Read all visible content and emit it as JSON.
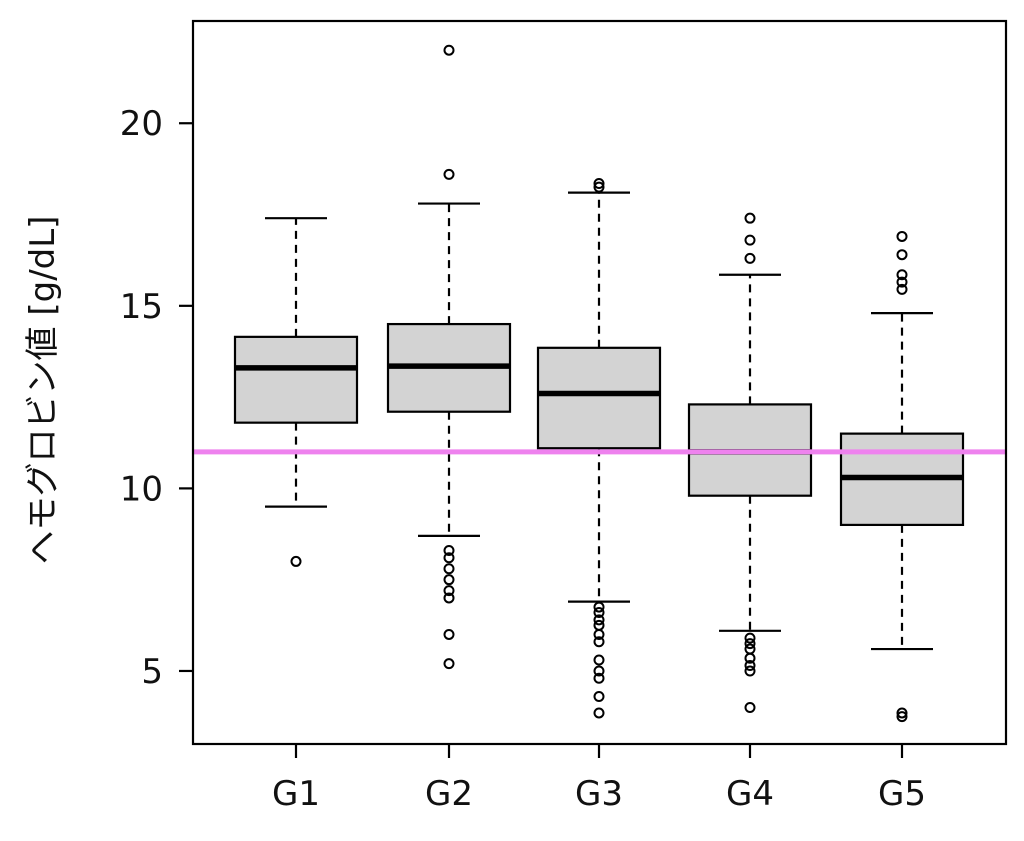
{
  "chart_data": {
    "type": "box",
    "ylabel": "ヘモグロビン値 [g/dL]",
    "xlabel": "",
    "title": "",
    "ylim": [
      3.0,
      22.8
    ],
    "yticks": [
      5,
      10,
      15,
      20
    ],
    "ytick_labels": [
      "5",
      "10",
      "15",
      "20"
    ],
    "categories": [
      "G1",
      "G2",
      "G3",
      "G4",
      "G5"
    ],
    "boxes": [
      {
        "group": "G1",
        "whisker_low": 9.5,
        "q1": 11.8,
        "median": 13.3,
        "q3": 14.15,
        "whisker_high": 17.4,
        "outliers": [
          8.0
        ]
      },
      {
        "group": "G2",
        "whisker_low": 8.7,
        "q1": 12.1,
        "median": 13.35,
        "q3": 14.5,
        "whisker_high": 17.8,
        "outliers": [
          22.0,
          18.6,
          8.3,
          8.1,
          7.8,
          7.5,
          7.2,
          7.0,
          6.0,
          5.2
        ]
      },
      {
        "group": "G3",
        "whisker_low": 6.9,
        "q1": 11.1,
        "median": 12.6,
        "q3": 13.85,
        "whisker_high": 18.1,
        "outliers": [
          18.35,
          18.25,
          6.75,
          6.6,
          6.4,
          6.25,
          6.0,
          5.8,
          5.3,
          5.0,
          4.8,
          4.3,
          3.85
        ]
      },
      {
        "group": "G4",
        "whisker_low": 6.1,
        "q1": 9.8,
        "median": 11.0,
        "q3": 12.3,
        "whisker_high": 15.85,
        "outliers": [
          17.4,
          16.8,
          16.3,
          5.9,
          5.75,
          5.6,
          5.35,
          5.15,
          5.0,
          4.0
        ]
      },
      {
        "group": "G5",
        "whisker_low": 5.6,
        "q1": 9.0,
        "median": 10.3,
        "q3": 11.5,
        "whisker_high": 14.8,
        "outliers": [
          16.9,
          16.4,
          15.85,
          15.65,
          15.45,
          3.85,
          3.75
        ]
      }
    ],
    "reference_line": {
      "y": 11.0,
      "color": "#ee82ee"
    },
    "box_fill": "#d3d3d3",
    "grid": false,
    "legend": "none"
  }
}
